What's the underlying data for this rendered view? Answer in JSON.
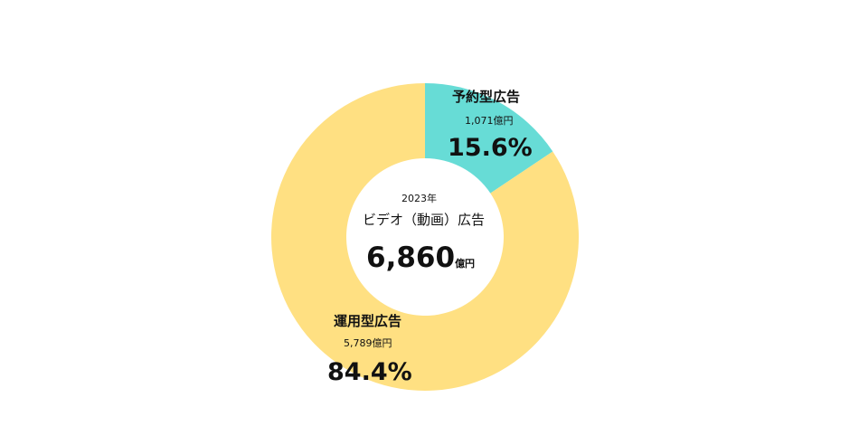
{
  "chart_data": {
    "type": "pie",
    "variant": "donut",
    "center": {
      "year": "2023年",
      "title": "ビデオ（動画）広告",
      "total": "6,860",
      "unit": "億円"
    },
    "slices": [
      {
        "name": "予約型広告",
        "amount_label": "1,071億円",
        "value": 1071,
        "percent": 15.6,
        "percent_label": "15.6%",
        "color": "#67dcd6"
      },
      {
        "name": "運用型広告",
        "amount_label": "5,789億円",
        "value": 5789,
        "percent": 84.4,
        "percent_label": "84.4%",
        "color": "#ffe082"
      }
    ]
  }
}
